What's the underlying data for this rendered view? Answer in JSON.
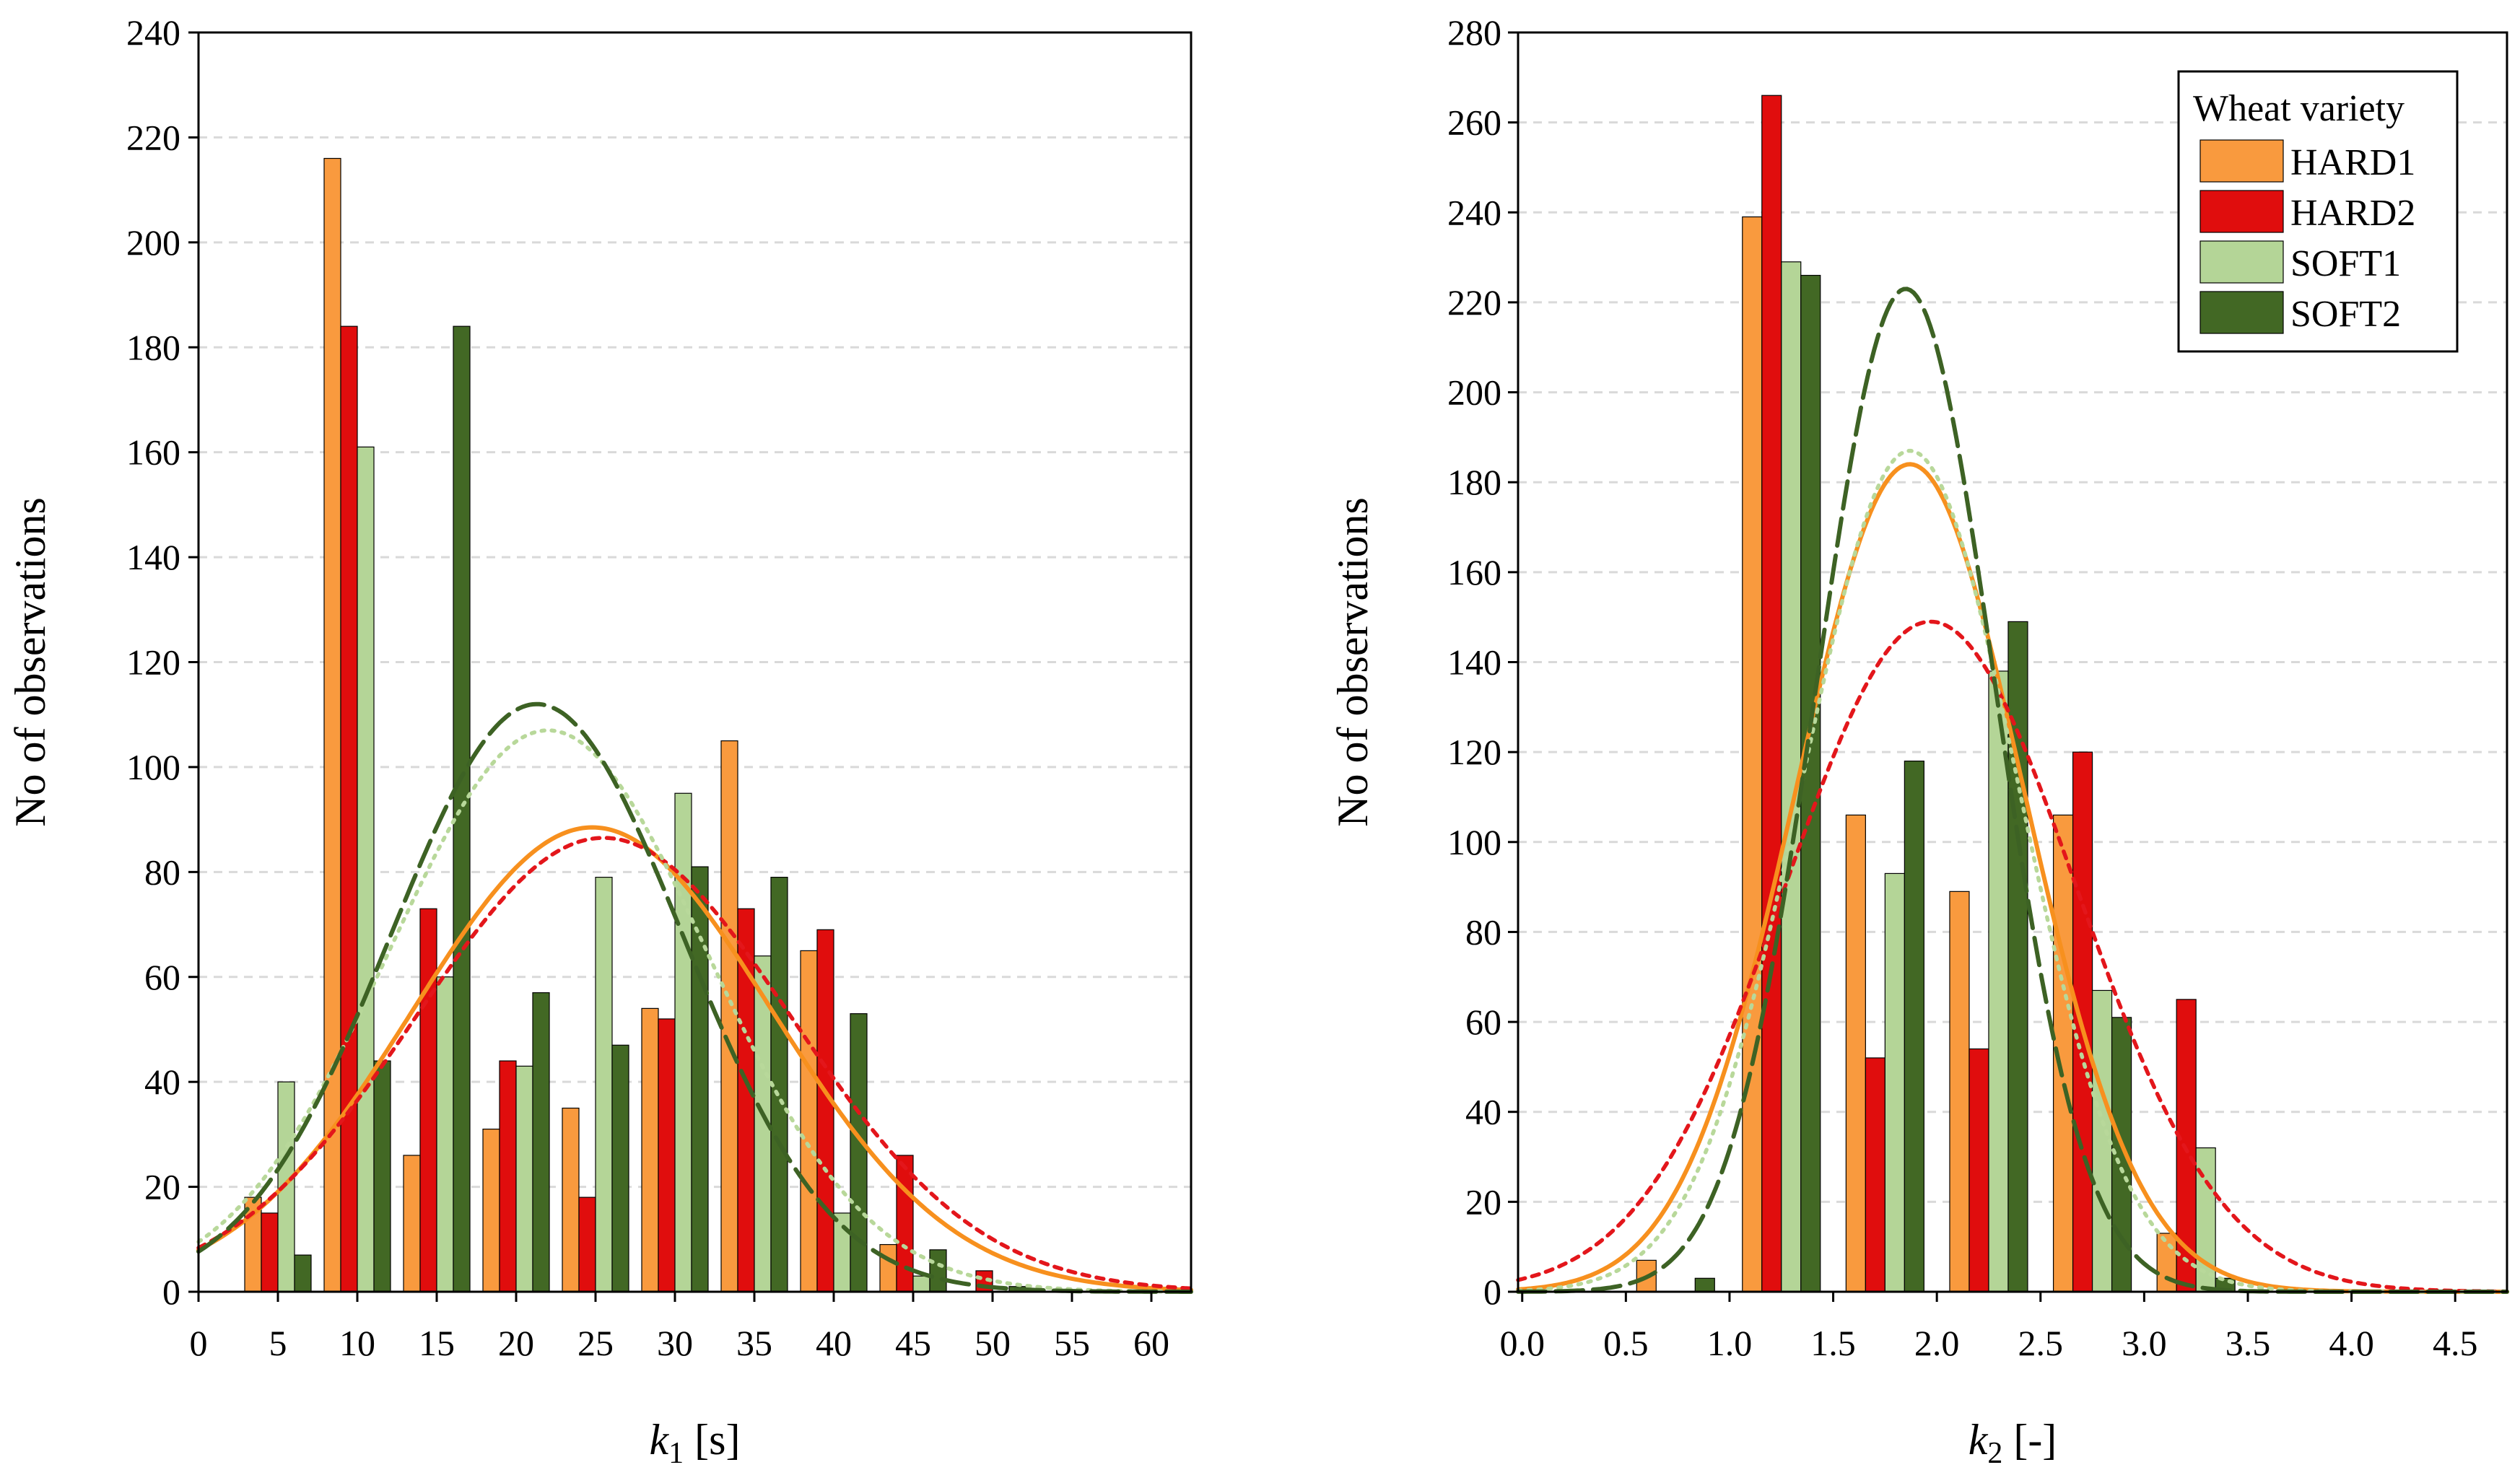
{
  "colors": {
    "HARD1": "#f99a3e",
    "HARD2": "#e00d0d",
    "SOFT1": "#b4d597",
    "SOFT2": "#426824",
    "HARD1_curve": "#f7901e",
    "HARD2_curve": "#e3161b",
    "SOFT1_curve": "#b8d89a",
    "SOFT2_curve": "#3d6224",
    "grid": "#d9d9d9"
  },
  "legend": {
    "title": "Wheat variety",
    "entries": [
      "HARD1",
      "HARD2",
      "SOFT1",
      "SOFT2"
    ]
  },
  "chart_data": [
    {
      "type": "bar",
      "title": "",
      "xlabel_var": "k",
      "xlabel_sub": "1",
      "xlabel_unit": " [s]",
      "ylabel": "No of observations",
      "xlim": [
        0,
        62.5
      ],
      "ylim": [
        0,
        240
      ],
      "xticks": [
        0,
        5,
        10,
        15,
        20,
        25,
        30,
        35,
        40,
        45,
        50,
        55,
        60
      ],
      "xtick_labels": [
        "0",
        "5",
        "10",
        "15",
        "20",
        "25",
        "30",
        "35",
        "40",
        "45",
        "50",
        "55",
        "60"
      ],
      "yticks": [
        0,
        20,
        40,
        60,
        80,
        100,
        120,
        140,
        160,
        180,
        200,
        220,
        240
      ],
      "ytick_labels": [
        "0",
        "20",
        "40",
        "60",
        "80",
        "100",
        "120",
        "140",
        "160",
        "180",
        "200",
        "220",
        "240"
      ],
      "bin_centers": [
        5,
        10,
        15,
        20,
        25,
        30,
        35,
        40,
        45,
        50
      ],
      "series": [
        {
          "name": "HARD1",
          "values": [
            18,
            216,
            26,
            31,
            35,
            54,
            105,
            65,
            9,
            0
          ]
        },
        {
          "name": "HARD2",
          "values": [
            15,
            184,
            73,
            44,
            18,
            52,
            73,
            69,
            26,
            4
          ]
        },
        {
          "name": "SOFT1",
          "values": [
            40,
            161,
            60,
            43,
            79,
            95,
            64,
            15,
            3,
            0
          ]
        },
        {
          "name": "SOFT2",
          "values": [
            7,
            44,
            184,
            57,
            47,
            81,
            79,
            53,
            8,
            1
          ]
        }
      ],
      "fits": [
        {
          "name": "HARD1",
          "style": "solid",
          "mean": 24.8,
          "sd": 11.3,
          "peak": 88.5
        },
        {
          "name": "HARD2",
          "style": "dotted-red",
          "mean": 25.5,
          "sd": 11.8,
          "peak": 86.5
        },
        {
          "name": "SOFT1",
          "style": "dotted",
          "mean": 22.0,
          "sd": 10.0,
          "peak": 107
        },
        {
          "name": "SOFT2",
          "style": "dashed",
          "mean": 21.3,
          "sd": 9.2,
          "peak": 112
        }
      ]
    },
    {
      "type": "bar",
      "title": "",
      "xlabel_var": "k",
      "xlabel_sub": "2",
      "xlabel_unit": " [-]",
      "ylabel": "No of observations",
      "xlim": [
        -0.02,
        4.75
      ],
      "ylim": [
        0,
        280
      ],
      "xticks": [
        0.0,
        0.5,
        1.0,
        1.5,
        2.0,
        2.5,
        3.0,
        3.5,
        4.0,
        4.5
      ],
      "xtick_labels": [
        "0.0",
        "0.5",
        "1.0",
        "1.5",
        "2.0",
        "2.5",
        "3.0",
        "3.5",
        "4.0",
        "4.5"
      ],
      "yticks": [
        0,
        20,
        40,
        60,
        80,
        100,
        120,
        140,
        160,
        180,
        200,
        220,
        240,
        260,
        280
      ],
      "ytick_labels": [
        "0",
        "20",
        "40",
        "60",
        "80",
        "100",
        "120",
        "140",
        "160",
        "180",
        "200",
        "220",
        "240",
        "260",
        "280"
      ],
      "bin_centers": [
        0.74,
        1.25,
        1.75,
        2.25,
        2.75,
        3.25
      ],
      "series": [
        {
          "name": "HARD1",
          "values": [
            7,
            239,
            106,
            89,
            106,
            13
          ]
        },
        {
          "name": "HARD2",
          "values": [
            0,
            266,
            52,
            54,
            120,
            65
          ]
        },
        {
          "name": "SOFT1",
          "values": [
            0,
            229,
            93,
            138,
            67,
            32
          ]
        },
        {
          "name": "SOFT2",
          "values": [
            3,
            226,
            118,
            149,
            61,
            3
          ]
        }
      ],
      "fits": [
        {
          "name": "HARD1",
          "style": "solid",
          "mean": 1.87,
          "sd": 0.55,
          "peak": 184
        },
        {
          "name": "HARD2",
          "style": "dotted-red",
          "mean": 1.97,
          "sd": 0.7,
          "peak": 149
        },
        {
          "name": "SOFT1",
          "style": "dotted",
          "mean": 1.87,
          "sd": 0.52,
          "peak": 187
        },
        {
          "name": "SOFT2",
          "style": "dashed",
          "mean": 1.85,
          "sd": 0.43,
          "peak": 223
        }
      ]
    }
  ]
}
